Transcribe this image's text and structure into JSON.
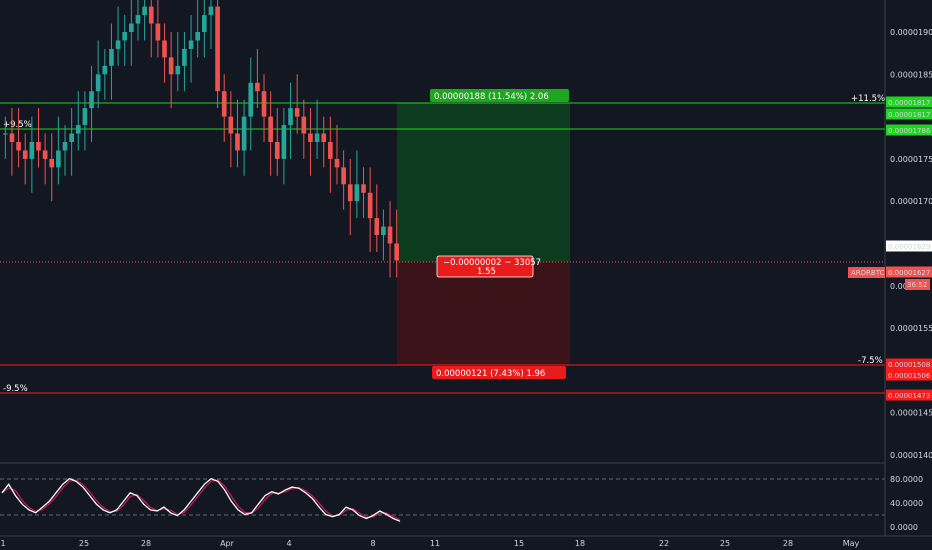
{
  "symbol": "ARDRBTC",
  "countdown": "36:52",
  "colors": {
    "background": "#131722",
    "up": "#26a69a",
    "down": "#ef5350",
    "profit_line": "#1fd51f",
    "loss_line": "#f51d1d",
    "profit_zone": "#0c3b1e",
    "loss_zone": "#3b1419",
    "stoch_k": "#ffffff",
    "stoch_d": "#c2185b"
  },
  "price_axis": {
    "ticks": [
      "0.00001900",
      "0.00001850",
      "0.00001800",
      "0.00001750",
      "0.00001700",
      "0.00001650",
      "0.00001600",
      "0.00001550",
      "0.00001500",
      "0.00001450",
      "0.00001400"
    ],
    "ticks_visible": [
      "0.00001900",
      "0.00001850",
      "0.00001750",
      "0.00001700",
      "0.00001550",
      "0.00001450",
      "0.00001400"
    ],
    "ticks_partial": {
      "price": "0.00001600",
      "text": "0.000"
    }
  },
  "time_axis": {
    "labels": [
      "1",
      "25",
      "28",
      "Apr",
      "4",
      "8",
      "11",
      "15",
      "18",
      "22",
      "25",
      "28",
      "May"
    ]
  },
  "price_tags": [
    {
      "name": "target-tag-a",
      "text": "0.00001817",
      "value": 1.817e-05,
      "color": "#1fd51f"
    },
    {
      "name": "target-tag-b",
      "text": "0.00001817",
      "value": 1.817e-05,
      "color": "#1fd51f"
    },
    {
      "name": "level-tag",
      "text": "0.00001786",
      "value": 1.786e-05,
      "color": "#1fd51f"
    },
    {
      "name": "last-price-tag",
      "text": "0.00001629",
      "value": 1.629e-05,
      "color": "#ffffff"
    },
    {
      "name": "current-price-tag",
      "text": "0.00001627",
      "value": 1.627e-05,
      "color": "#ef5350"
    },
    {
      "name": "stop-tag-a",
      "text": "0.00001508",
      "value": 1.508e-05,
      "color": "#f51d1d"
    },
    {
      "name": "stop-tag-b",
      "text": "0.00001506",
      "value": 1.506e-05,
      "color": "#f51d1d"
    },
    {
      "name": "lower-level-tag",
      "text": "0.00001473",
      "value": 1.473e-05,
      "color": "#f51d1d"
    }
  ],
  "horizontal_lines": [
    {
      "label": "+11.5%",
      "value": 1.817e-05,
      "color": "#1fd51f"
    },
    {
      "label": "+9.5%",
      "value": 1.786e-05,
      "color": "#1fd51f"
    },
    {
      "label": "-7.5%",
      "value": 1.506e-05,
      "color": "#f51d1d"
    },
    {
      "label": "-9.5%",
      "value": 1.473e-05,
      "color": "#f51d1d"
    }
  ],
  "position": {
    "profit_label": "0.00000188 (11.54%) 2.06",
    "loss_label": "0.00000121 (7.43%) 1.96",
    "current_label_line1": "−0.00000002 ~ 33057",
    "current_label_line2": "1.55"
  },
  "stoch_axis": {
    "ticks": [
      "80.0000",
      "40.0000",
      "0.0000"
    ],
    "levels": [
      80,
      20
    ]
  },
  "chart_data": {
    "type": "candlestick",
    "symbol": "ARDRBTC",
    "x_range": [
      "Mar 21",
      "May 1"
    ],
    "ylim": [
      1.4e-05,
      1.93e-05
    ],
    "candles_close_path": [
      1.78e-05,
      1.77e-05,
      1.76e-05,
      1.75e-05,
      1.77e-05,
      1.76e-05,
      1.75e-05,
      1.74e-05,
      1.76e-05,
      1.77e-05,
      1.78e-05,
      1.79e-05,
      1.81e-05,
      1.83e-05,
      1.85e-05,
      1.86e-05,
      1.88e-05,
      1.89e-05,
      1.9e-05,
      1.91e-05,
      1.92e-05,
      1.93e-05,
      1.91e-05,
      1.89e-05,
      1.87e-05,
      1.85e-05,
      1.86e-05,
      1.88e-05,
      1.89e-05,
      1.9e-05,
      1.92e-05,
      1.93e-05,
      1.83e-05,
      1.8e-05,
      1.78e-05,
      1.76e-05,
      1.8e-05,
      1.84e-05,
      1.83e-05,
      1.8e-05,
      1.77e-05,
      1.75e-05,
      1.79e-05,
      1.81e-05,
      1.8e-05,
      1.78e-05,
      1.77e-05,
      1.78e-05,
      1.77e-05,
      1.75e-05,
      1.74e-05,
      1.72e-05,
      1.7e-05,
      1.72e-05,
      1.71e-05,
      1.68e-05,
      1.66e-05,
      1.67e-05,
      1.65e-05,
      1.63e-05
    ],
    "stoch": [
      60,
      75,
      55,
      40,
      30,
      25,
      35,
      45,
      60,
      75,
      85,
      80,
      70,
      55,
      40,
      30,
      25,
      30,
      45,
      60,
      55,
      40,
      30,
      28,
      35,
      25,
      20,
      30,
      45,
      60,
      75,
      85,
      80,
      65,
      45,
      30,
      22,
      25,
      40,
      55,
      62,
      58,
      65,
      70,
      68,
      60,
      50,
      35,
      22,
      18,
      22,
      35,
      30,
      20,
      15,
      20,
      28,
      22,
      15,
      10
    ],
    "stoch_ylim": [
      0,
      100
    ],
    "series": [
      {
        "name": "%K",
        "color": "#ffffff"
      },
      {
        "name": "%D",
        "color": "#c2185b"
      }
    ]
  }
}
